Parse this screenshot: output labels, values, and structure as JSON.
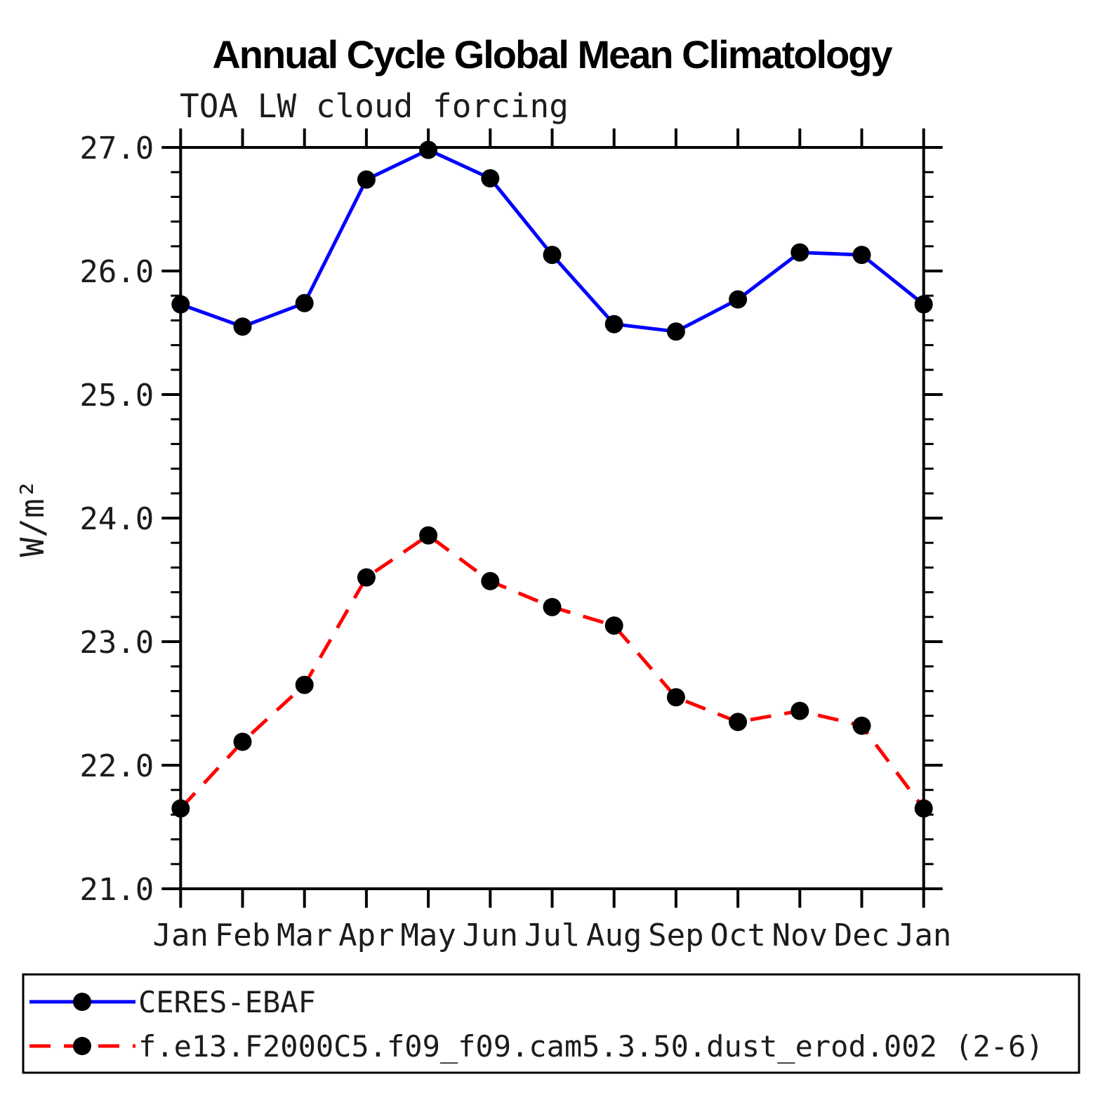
{
  "title": "Annual Cycle Global Mean Climatology",
  "subtitle": "TOA LW cloud forcing",
  "ylabel": "W/m²",
  "chart_data": {
    "type": "line",
    "title": "Annual Cycle Global Mean Climatology",
    "subtitle": "TOA LW cloud forcing",
    "xlabel": "",
    "ylabel": "W/m²",
    "x_categories": [
      "Jan",
      "Feb",
      "Mar",
      "Apr",
      "May",
      "Jun",
      "Jul",
      "Aug",
      "Sep",
      "Oct",
      "Nov",
      "Dec",
      "Jan"
    ],
    "ylim": [
      21.0,
      27.0
    ],
    "ytick_interval": 1.0,
    "yminor_interval": 0.2,
    "ytick_labels": [
      "21.0",
      "22.0",
      "23.0",
      "24.0",
      "25.0",
      "26.0",
      "27.0"
    ],
    "grid": false,
    "legend_position": "bottom-left-box",
    "marker": "filled-circle",
    "marker_color": "#000000",
    "frame_color": "#000000",
    "series": [
      {
        "name": "CERES-EBAF",
        "color": "#0000ff",
        "style": "solid",
        "values": [
          25.73,
          25.55,
          25.74,
          26.74,
          26.98,
          26.75,
          26.13,
          25.57,
          25.51,
          25.77,
          26.15,
          26.13,
          25.73
        ]
      },
      {
        "name": "f.e13.F2000C5.f09_f09.cam5.3.50.dust_erod.002 (2-6)",
        "color": "#ff0000",
        "style": "dashed",
        "values": [
          21.65,
          22.19,
          22.65,
          23.52,
          23.86,
          23.49,
          23.28,
          23.13,
          22.55,
          22.35,
          22.44,
          22.32,
          21.65
        ]
      }
    ]
  }
}
